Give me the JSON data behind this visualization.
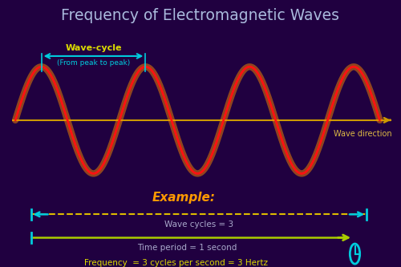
{
  "title": "Frequency of Electromagnetic Waves",
  "title_color": "#aabbdd",
  "title_fontsize": 13.5,
  "bg_outer": "#200040",
  "bg_inner": "#04040e",
  "wave_color_main": "#ff1111",
  "wave_color_glow": "#ff8800",
  "wave_amplitude": 1.0,
  "wave_cycles": 3.5,
  "axis_color": "#cc9900",
  "axis_label": "Wave direction",
  "axis_label_color": "#ddbb44",
  "wavecycle_label": "Wave-cycle",
  "wavecycle_sub": "(From peak to peak)",
  "wavecycle_label_color": "#dddd00",
  "wavecycle_arrow_color": "#00ccdd",
  "example_label": "Example:",
  "example_color": "#ff9900",
  "wave_cycles_label": "Wave cycles = 3",
  "wave_cycles_label_color": "#aaaacc",
  "wave_cycles_arrow_color": "#ddbb00",
  "wave_cycles_end_color": "#00ccdd",
  "time_period_label": "Time period = 1 second",
  "time_period_color": "#aaaacc",
  "time_period_line_color": "#aacc00",
  "time_period_start_color": "#00ccdd",
  "frequency_label": "Frequency  = 3 cycles per second = 3 Hertz",
  "frequency_color": "#dddd00",
  "clock_color": "#00ccdd"
}
